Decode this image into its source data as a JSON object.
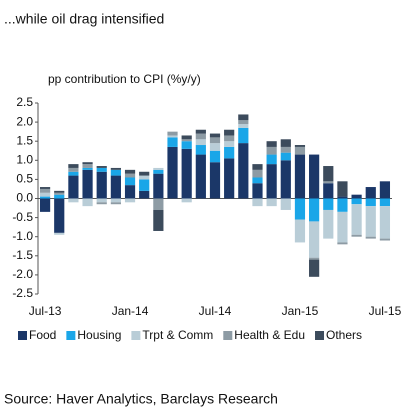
{
  "chart_data": {
    "type": "bar",
    "stacked": true,
    "title": "...while oil drag intensified",
    "y_label": "pp contribution to CPI (%y/y)",
    "source": "Source: Haver Analytics, Barclays Research",
    "categories": [
      "Jul-13",
      null,
      null,
      null,
      null,
      null,
      "Jan-14",
      null,
      null,
      null,
      null,
      null,
      "Jul-14",
      null,
      null,
      null,
      null,
      null,
      "Jan-15",
      null,
      null,
      null,
      null,
      null,
      "Jul-15"
    ],
    "series": [
      {
        "name": "Food",
        "color": "#1b3768",
        "values": [
          -0.35,
          -0.9,
          0.6,
          0.75,
          0.7,
          0.6,
          0.35,
          0.2,
          0.65,
          1.35,
          1.3,
          1.15,
          0.95,
          1.05,
          1.45,
          0.4,
          0.9,
          1.0,
          1.15,
          1.15,
          0.4,
          0.05,
          0.1,
          0.3,
          0.45
        ]
      },
      {
        "name": "Housing",
        "color": "#1aa6e8",
        "values": [
          0.05,
          0.1,
          0.1,
          0.05,
          0.1,
          0.15,
          0.2,
          0.3,
          0.1,
          0.25,
          0.2,
          0.25,
          0.3,
          0.3,
          0.4,
          0.15,
          0.25,
          0.2,
          -0.55,
          -0.6,
          -0.3,
          -0.35,
          -0.15,
          -0.2,
          -0.2
        ]
      },
      {
        "name": "Trpt & Comm",
        "color": "#b9cdd7",
        "values": [
          0.1,
          -0.05,
          -0.1,
          -0.2,
          -0.1,
          -0.1,
          -0.1,
          0.1,
          0.05,
          0.05,
          -0.1,
          0.15,
          0.2,
          0.15,
          0.1,
          -0.2,
          -0.2,
          -0.3,
          -0.6,
          -0.95,
          -0.75,
          -0.8,
          -0.8,
          -0.8,
          -0.85
        ]
      },
      {
        "name": "Health & Edu",
        "color": "#8d9ba4",
        "values": [
          0.1,
          0.05,
          0.1,
          0.1,
          -0.05,
          -0.05,
          0.1,
          0,
          -0.3,
          0.1,
          0.05,
          0.15,
          0.15,
          0.15,
          0.1,
          0.2,
          0.2,
          0.15,
          0.2,
          -0.05,
          0.05,
          -0.05,
          -0.05,
          -0.05,
          -0.05
        ]
      },
      {
        "name": "Others",
        "color": "#3c4b5c",
        "values": [
          0.05,
          0.05,
          0.1,
          0.05,
          0.05,
          0.05,
          0.1,
          0.1,
          -0.55,
          0,
          0.1,
          0.1,
          0.1,
          0.15,
          0.15,
          0.15,
          0.15,
          0.2,
          0.05,
          -0.45,
          0.4,
          0.4,
          0,
          0,
          0
        ]
      }
    ],
    "ylim": [
      -2.5,
      2.5
    ],
    "yticks": [
      -2.5,
      {
        "value": -2,
        "label": "-2.0"
      },
      -1.5,
      {
        "value": -1,
        "label": "-1.0"
      },
      -0.5,
      {
        "value": 0,
        "label": "0.0"
      },
      0.5,
      {
        "value": 1,
        "label": "1.0"
      },
      1.5,
      {
        "value": 2,
        "label": "2.0"
      },
      2.5
    ],
    "legend": "bottom"
  }
}
